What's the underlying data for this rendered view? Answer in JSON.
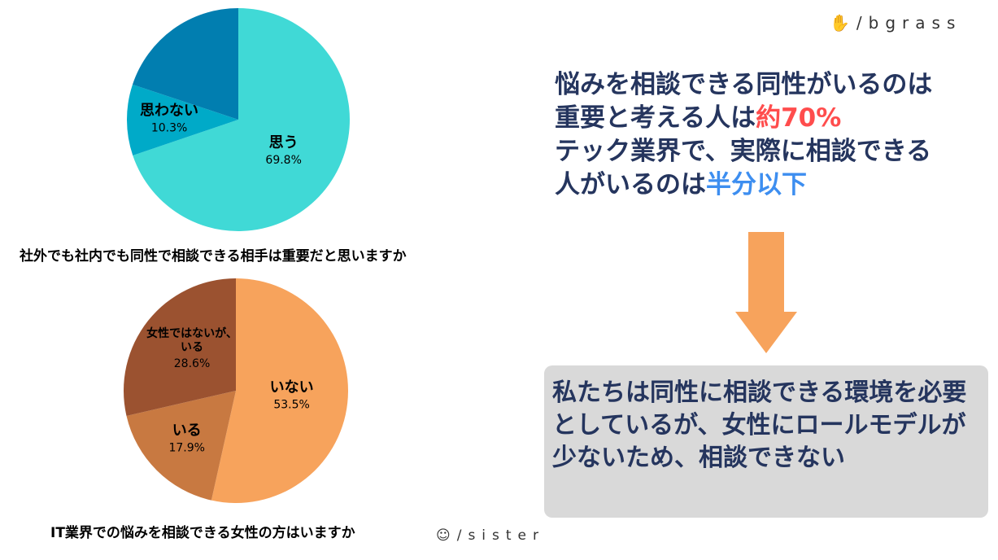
{
  "chart_data": [
    {
      "type": "pie",
      "title": "社外でも社内でも同性で相談できる相手は重要だと思いますか",
      "slices": [
        {
          "label": "思う",
          "value": 69.8,
          "color": "#40D9D6"
        },
        {
          "label": "思わない",
          "value": 10.3,
          "color": "#00AAC8"
        },
        {
          "label": "",
          "value": 19.9,
          "color": "#017EB0"
        }
      ]
    },
    {
      "type": "pie",
      "title": "IT業界での悩みを相談できる女性の方はいますか",
      "slices": [
        {
          "label": "いない",
          "value": 53.5,
          "color": "#F7A35C"
        },
        {
          "label": "いる",
          "value": 17.9,
          "color": "#C87941"
        },
        {
          "label": "女性ではないが、いる",
          "value": 28.6,
          "color": "#9B5230"
        }
      ]
    }
  ],
  "headline": {
    "l1": "悩みを相談できる同性がいるのは",
    "l2a": "重要と考える人は",
    "l2b": "約70%",
    "l3": "テック業界で、実際に相談できる",
    "l4a": "人がいるのは",
    "l4b": "半分以下"
  },
  "conclusion": "私たちは同性に相談できる環境を必要としているが、女性にロールモデルが少ないため、相談できない",
  "logos": {
    "top": "bgrass",
    "bottom": "sister"
  },
  "colors": {
    "navy": "#25355E",
    "red": "#FF4D4D",
    "blue": "#3D8EF0",
    "arrow": "#F7A35C",
    "box": "#D9D9D9"
  }
}
